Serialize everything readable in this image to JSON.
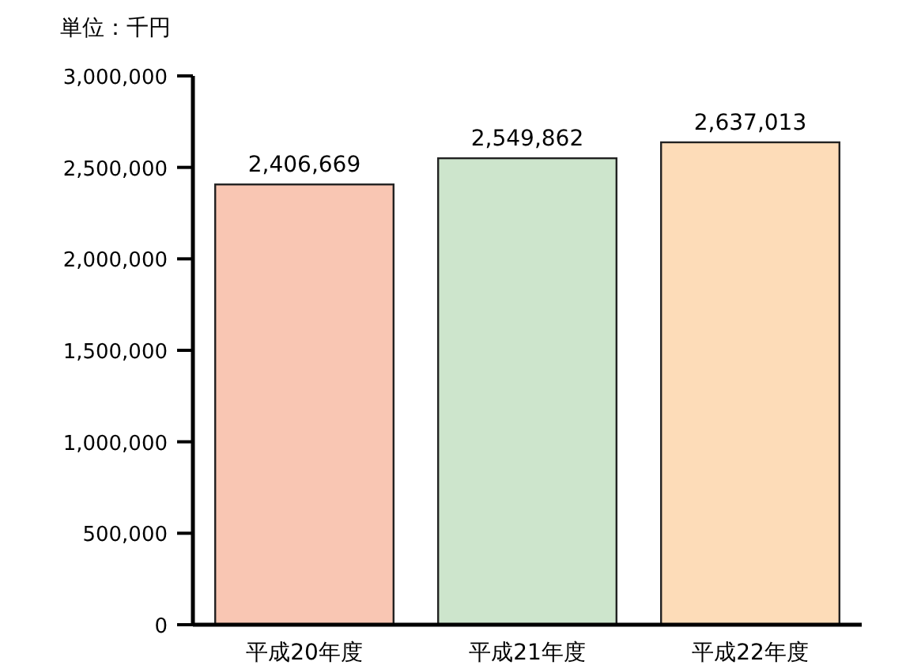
{
  "chart_data": {
    "type": "bar",
    "ylabel": "単位：千円",
    "categories": [
      "平成20年度",
      "平成21年度",
      "平成22年度"
    ],
    "values": [
      2406669,
      2549862,
      2637013
    ],
    "colors": [
      "#f9c6b3",
      "#cde5cc",
      "#fddcb8"
    ],
    "ylim": [
      0,
      3000000
    ],
    "yticks": [
      {
        "value": 0,
        "label": "0"
      },
      {
        "value": 500000,
        "label": "500,000"
      },
      {
        "value": 1000000,
        "label": "1,000,000"
      },
      {
        "value": 1500000,
        "label": "1,500,000"
      },
      {
        "value": 2000000,
        "label": "2,000,000"
      },
      {
        "value": 2500000,
        "label": "2,500,000"
      },
      {
        "value": 3000000,
        "label": "3,000,000"
      }
    ],
    "value_labels": [
      "2,406,669",
      "2,549,862",
      "2,637,013"
    ],
    "grid": false
  }
}
